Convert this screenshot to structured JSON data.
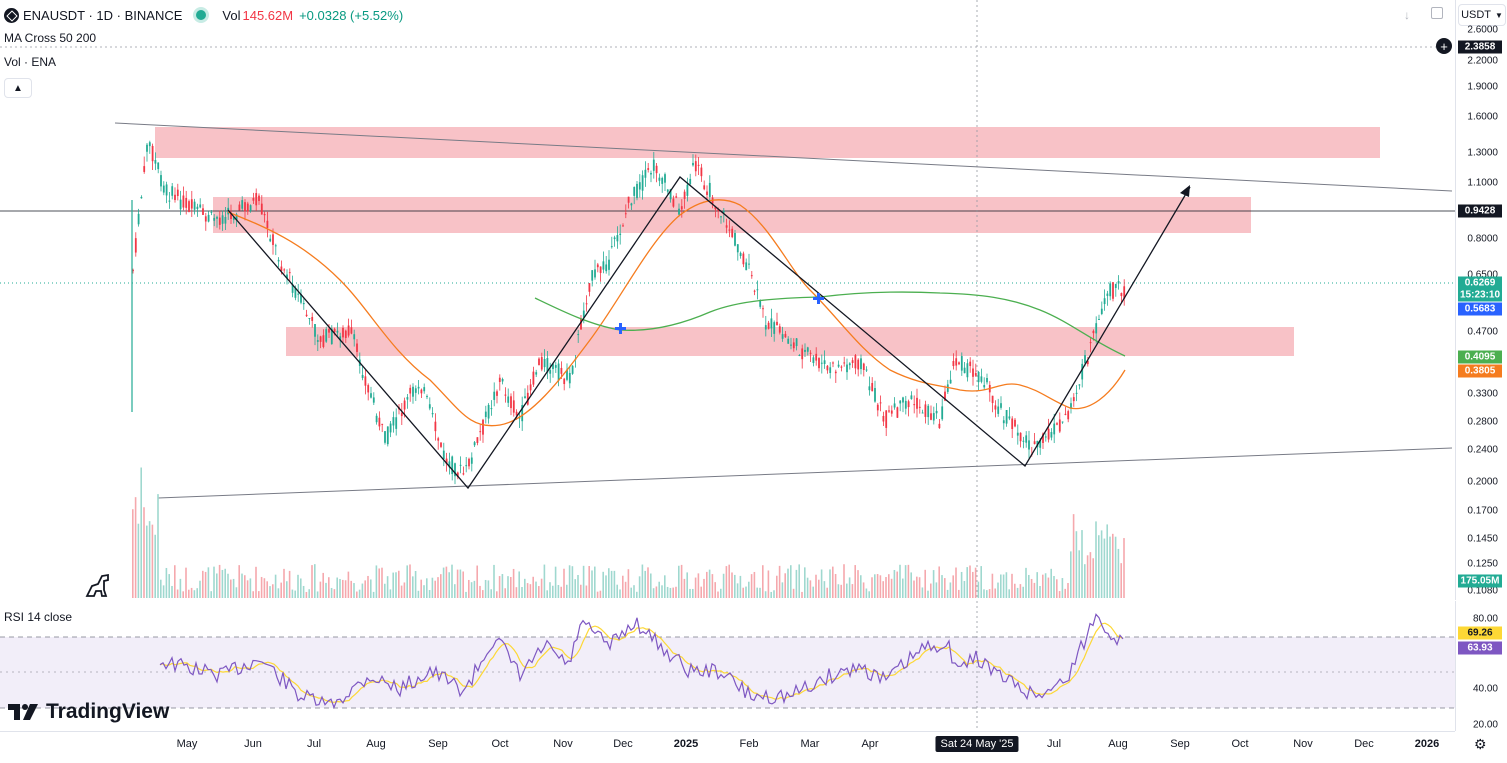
{
  "header": {
    "symbol": "ENAUSDT · 1D · BINANCE",
    "vol_label": "Vol",
    "vol_value": "145.62M",
    "change": "+0.0328 (+5.52%)",
    "currency": "USDT"
  },
  "indicators": {
    "ma": "MA Cross 50 200",
    "vol": "Vol · ENA",
    "rsi": "RSI 14 close"
  },
  "price_scale": {
    "ticks": [
      "2.6000",
      "2.2000",
      "1.9000",
      "1.6000",
      "1.3000",
      "1.1000",
      "0.8000",
      "0.6500",
      "0.4700",
      "0.3300",
      "0.2800",
      "0.2400",
      "0.2000",
      "0.1700",
      "0.1450",
      "0.1250",
      "0.1080"
    ],
    "crosshair_price": "2.3858",
    "line_price": "0.9428",
    "last_price": "0.6269",
    "countdown": "15:23:10",
    "label_blue": "0.5683",
    "label_green": "0.4095",
    "label_orange": "0.3805",
    "volume_label": "175.05M"
  },
  "rsi_scale": {
    "ticks": [
      "80.00",
      "40.00",
      "20.00"
    ],
    "label_yellow": "69.26",
    "label_purple": "63.93"
  },
  "time_axis": {
    "labels": [
      "May",
      "Jun",
      "Jul",
      "Aug",
      "Sep",
      "Oct",
      "Nov",
      "Dec",
      "2025",
      "Feb",
      "Mar",
      "Apr",
      "May",
      "Jun",
      "Jul",
      "Aug",
      "Sep",
      "Oct",
      "Nov",
      "Dec",
      "2026"
    ],
    "crosshair_date": "Sat 24 May '25"
  },
  "branding": {
    "logo_text": "TradingView"
  },
  "colors": {
    "up": "#22ab94",
    "down": "#f23645",
    "ma_fast": "#f57c1f",
    "ma_slow": "#4caf50",
    "rsi": "#7e57c2",
    "rsi_ma": "#fdd835",
    "zone": "#f7b7bd"
  },
  "icons": {
    "exchange": "binance-logo-icon",
    "collapse": "chevron-up-icon",
    "add": "plus-circle-icon",
    "settings": "gear-icon"
  }
}
